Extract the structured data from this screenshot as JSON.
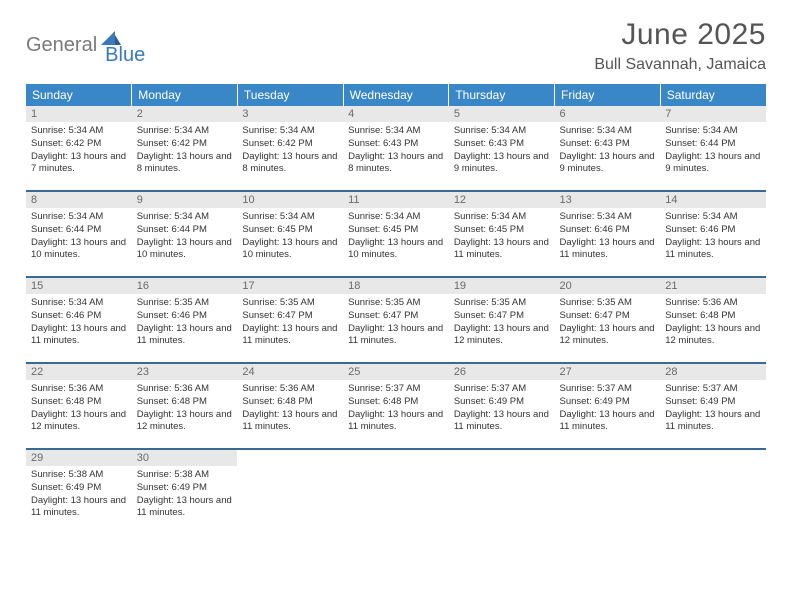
{
  "logo": {
    "word1": "General",
    "word2": "Blue"
  },
  "title": "June 2025",
  "location": "Bull Savannah, Jamaica",
  "dow": [
    "Sunday",
    "Monday",
    "Tuesday",
    "Wednesday",
    "Thursday",
    "Friday",
    "Saturday"
  ],
  "colors": {
    "header_bg": "#3a87c7",
    "row_divider": "#3a6a94",
    "daynum_bg": "#e8e8e8",
    "logo_gray": "#7a7a7a",
    "logo_blue": "#3a7ab8"
  },
  "weeks": [
    [
      {
        "n": "1",
        "sunrise": "5:34 AM",
        "sunset": "6:42 PM",
        "daylight": "13 hours and 7 minutes."
      },
      {
        "n": "2",
        "sunrise": "5:34 AM",
        "sunset": "6:42 PM",
        "daylight": "13 hours and 8 minutes."
      },
      {
        "n": "3",
        "sunrise": "5:34 AM",
        "sunset": "6:42 PM",
        "daylight": "13 hours and 8 minutes."
      },
      {
        "n": "4",
        "sunrise": "5:34 AM",
        "sunset": "6:43 PM",
        "daylight": "13 hours and 8 minutes."
      },
      {
        "n": "5",
        "sunrise": "5:34 AM",
        "sunset": "6:43 PM",
        "daylight": "13 hours and 9 minutes."
      },
      {
        "n": "6",
        "sunrise": "5:34 AM",
        "sunset": "6:43 PM",
        "daylight": "13 hours and 9 minutes."
      },
      {
        "n": "7",
        "sunrise": "5:34 AM",
        "sunset": "6:44 PM",
        "daylight": "13 hours and 9 minutes."
      }
    ],
    [
      {
        "n": "8",
        "sunrise": "5:34 AM",
        "sunset": "6:44 PM",
        "daylight": "13 hours and 10 minutes."
      },
      {
        "n": "9",
        "sunrise": "5:34 AM",
        "sunset": "6:44 PM",
        "daylight": "13 hours and 10 minutes."
      },
      {
        "n": "10",
        "sunrise": "5:34 AM",
        "sunset": "6:45 PM",
        "daylight": "13 hours and 10 minutes."
      },
      {
        "n": "11",
        "sunrise": "5:34 AM",
        "sunset": "6:45 PM",
        "daylight": "13 hours and 10 minutes."
      },
      {
        "n": "12",
        "sunrise": "5:34 AM",
        "sunset": "6:45 PM",
        "daylight": "13 hours and 11 minutes."
      },
      {
        "n": "13",
        "sunrise": "5:34 AM",
        "sunset": "6:46 PM",
        "daylight": "13 hours and 11 minutes."
      },
      {
        "n": "14",
        "sunrise": "5:34 AM",
        "sunset": "6:46 PM",
        "daylight": "13 hours and 11 minutes."
      }
    ],
    [
      {
        "n": "15",
        "sunrise": "5:34 AM",
        "sunset": "6:46 PM",
        "daylight": "13 hours and 11 minutes."
      },
      {
        "n": "16",
        "sunrise": "5:35 AM",
        "sunset": "6:46 PM",
        "daylight": "13 hours and 11 minutes."
      },
      {
        "n": "17",
        "sunrise": "5:35 AM",
        "sunset": "6:47 PM",
        "daylight": "13 hours and 11 minutes."
      },
      {
        "n": "18",
        "sunrise": "5:35 AM",
        "sunset": "6:47 PM",
        "daylight": "13 hours and 11 minutes."
      },
      {
        "n": "19",
        "sunrise": "5:35 AM",
        "sunset": "6:47 PM",
        "daylight": "13 hours and 12 minutes."
      },
      {
        "n": "20",
        "sunrise": "5:35 AM",
        "sunset": "6:47 PM",
        "daylight": "13 hours and 12 minutes."
      },
      {
        "n": "21",
        "sunrise": "5:36 AM",
        "sunset": "6:48 PM",
        "daylight": "13 hours and 12 minutes."
      }
    ],
    [
      {
        "n": "22",
        "sunrise": "5:36 AM",
        "sunset": "6:48 PM",
        "daylight": "13 hours and 12 minutes."
      },
      {
        "n": "23",
        "sunrise": "5:36 AM",
        "sunset": "6:48 PM",
        "daylight": "13 hours and 12 minutes."
      },
      {
        "n": "24",
        "sunrise": "5:36 AM",
        "sunset": "6:48 PM",
        "daylight": "13 hours and 11 minutes."
      },
      {
        "n": "25",
        "sunrise": "5:37 AM",
        "sunset": "6:48 PM",
        "daylight": "13 hours and 11 minutes."
      },
      {
        "n": "26",
        "sunrise": "5:37 AM",
        "sunset": "6:49 PM",
        "daylight": "13 hours and 11 minutes."
      },
      {
        "n": "27",
        "sunrise": "5:37 AM",
        "sunset": "6:49 PM",
        "daylight": "13 hours and 11 minutes."
      },
      {
        "n": "28",
        "sunrise": "5:37 AM",
        "sunset": "6:49 PM",
        "daylight": "13 hours and 11 minutes."
      }
    ],
    [
      {
        "n": "29",
        "sunrise": "5:38 AM",
        "sunset": "6:49 PM",
        "daylight": "13 hours and 11 minutes."
      },
      {
        "n": "30",
        "sunrise": "5:38 AM",
        "sunset": "6:49 PM",
        "daylight": "13 hours and 11 minutes."
      },
      null,
      null,
      null,
      null,
      null
    ]
  ],
  "labels": {
    "sunrise": "Sunrise:",
    "sunset": "Sunset:",
    "daylight": "Daylight:"
  }
}
